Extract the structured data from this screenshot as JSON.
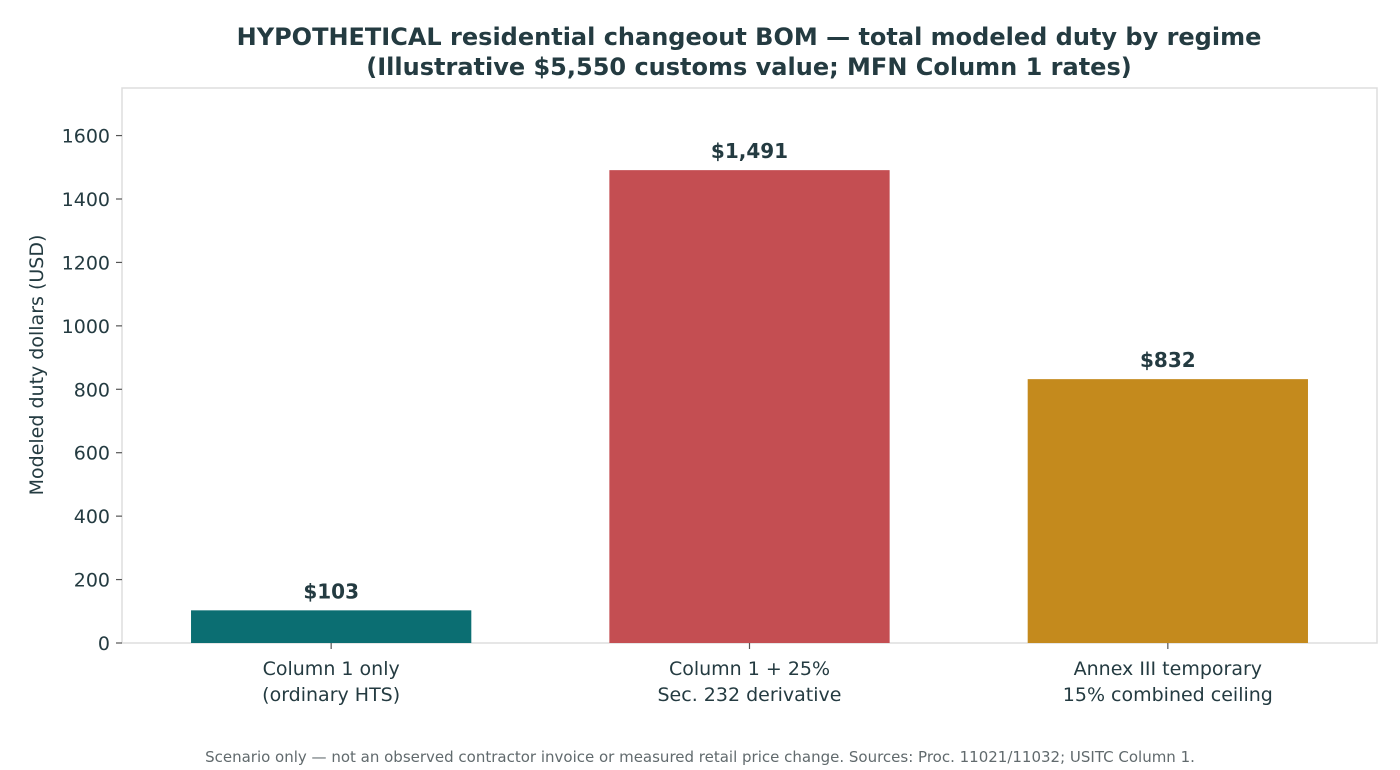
{
  "chart_data": {
    "type": "bar",
    "title": [
      "HYPOTHETICAL residential changeout BOM — total modeled duty by regime",
      "(Illustrative $5,550 customs value; MFN Column 1 rates)"
    ],
    "xlabel": "",
    "ylabel": "Modeled duty dollars (USD)",
    "ylim": [
      0,
      1750
    ],
    "yticks": [
      0,
      200,
      400,
      600,
      800,
      1000,
      1200,
      1400,
      1600
    ],
    "categories": [
      [
        "Column 1 only",
        "(ordinary HTS)"
      ],
      [
        "Column 1 + 25%",
        "Sec. 232 derivative"
      ],
      [
        "Annex III temporary",
        "15% combined ceiling"
      ]
    ],
    "values": [
      103,
      1491,
      832
    ],
    "data_labels": [
      "$103",
      "$1,491",
      "$832"
    ],
    "colors": [
      "#0b6e72",
      "#c44e52",
      "#c48a1d"
    ],
    "grid": false,
    "legend": "none"
  },
  "footnote": "Scenario only — not an observed contractor invoice or measured retail price change. Sources: Proc. 11021/11032; USITC Column 1."
}
